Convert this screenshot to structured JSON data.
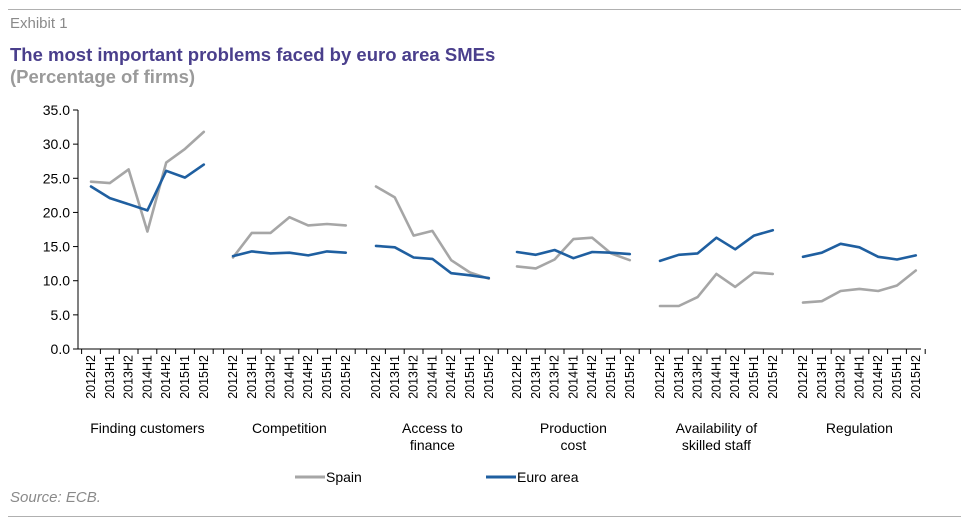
{
  "header": {
    "exhibit": "Exhibit 1",
    "title": "The most important problems faced by euro area SMEs",
    "subtitle": "(Percentage of firms)"
  },
  "footer": {
    "source": "Source: ECB."
  },
  "chart_data": {
    "type": "line",
    "title": "The most important problems faced by euro area SMEs",
    "ylim": [
      0,
      35
    ],
    "yticks": [
      "0.0",
      "5.0",
      "10.0",
      "15.0",
      "20.0",
      "25.0",
      "30.0",
      "35.0"
    ],
    "grid": false,
    "legend_position": "bottom-center",
    "periods": [
      "2012H2",
      "2013H1",
      "2013H2",
      "2014H1",
      "2014H2",
      "2015H1",
      "2015H2"
    ],
    "groups": [
      {
        "label_lines": [
          "Finding customers"
        ]
      },
      {
        "label_lines": [
          "Competition"
        ]
      },
      {
        "label_lines": [
          "Access to",
          "finance"
        ]
      },
      {
        "label_lines": [
          "Production",
          "cost"
        ]
      },
      {
        "label_lines": [
          "Availability of",
          "skilled staff"
        ]
      },
      {
        "label_lines": [
          "Regulation"
        ]
      }
    ],
    "series": [
      {
        "name": "Spain",
        "color": "#a6a6a6",
        "values": [
          [
            24.5,
            24.3,
            26.3,
            17.2,
            27.3,
            29.3,
            31.8
          ],
          [
            13.4,
            17.0,
            17.0,
            19.3,
            18.1,
            18.3,
            18.1
          ],
          [
            23.8,
            22.2,
            16.6,
            17.3,
            13.0,
            11.2,
            10.3
          ],
          [
            12.1,
            11.8,
            13.1,
            16.1,
            16.3,
            14.0,
            13.0
          ],
          [
            6.3,
            6.3,
            7.6,
            11.0,
            9.1,
            11.2,
            11.0
          ],
          [
            6.8,
            7.0,
            8.5,
            8.8,
            8.5,
            9.3,
            11.5
          ]
        ]
      },
      {
        "name": "Euro area",
        "color": "#1f5fa0",
        "values": [
          [
            23.8,
            22.1,
            21.2,
            20.3,
            26.1,
            25.1,
            27.0
          ],
          [
            13.6,
            14.3,
            14.0,
            14.1,
            13.7,
            14.3,
            14.1
          ],
          [
            15.1,
            14.9,
            13.4,
            13.2,
            11.1,
            10.8,
            10.4
          ],
          [
            14.2,
            13.8,
            14.5,
            13.3,
            14.2,
            14.1,
            13.9
          ],
          [
            12.9,
            13.8,
            14.0,
            16.3,
            14.6,
            16.6,
            17.4
          ],
          [
            13.5,
            14.1,
            15.4,
            14.9,
            13.5,
            13.1,
            13.7
          ]
        ]
      }
    ]
  }
}
